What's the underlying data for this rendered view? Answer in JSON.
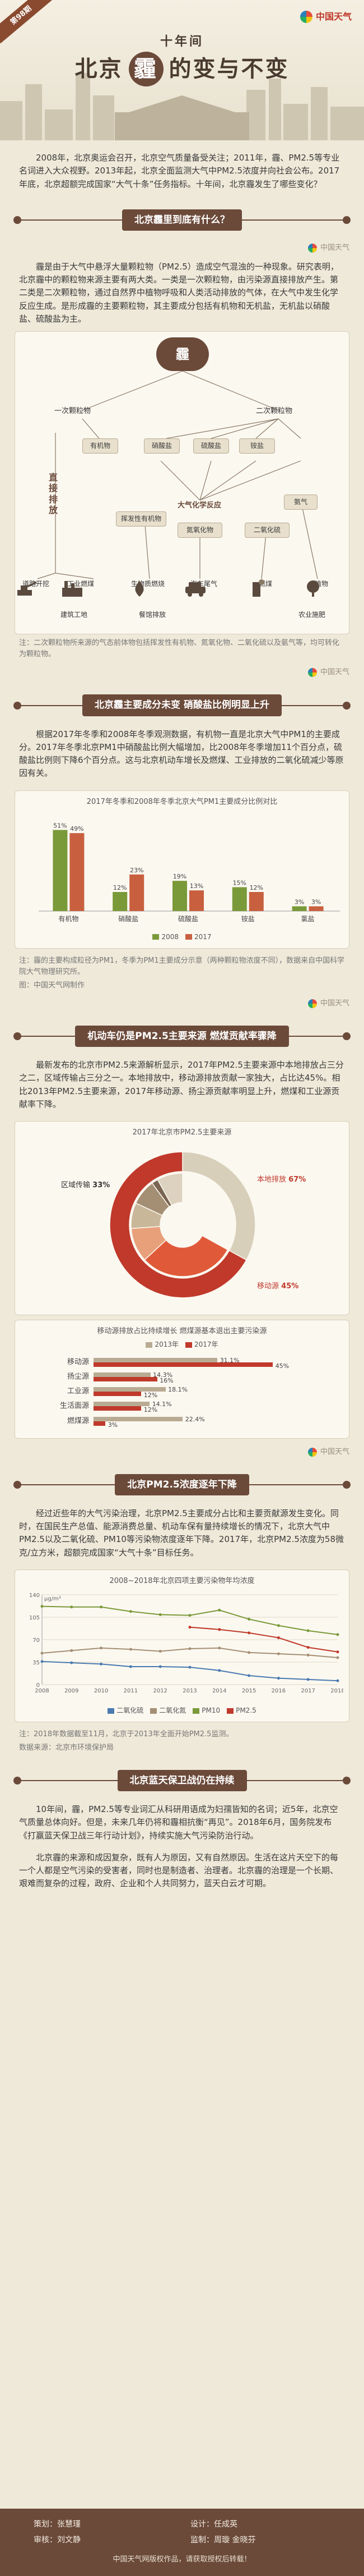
{
  "header": {
    "corner_tag": "第98期",
    "brand": "中国天气",
    "title_prefix": "十年间",
    "title_city": "北京",
    "title_haze": "霾",
    "title_suffix": "的变与不变"
  },
  "intro": "2008年，北京奥运会召开，北京空气质量备受关注；2011年，霾、PM2.5等专业名词进入大众视野。2013年起，北京全面监测大气中PM2.5浓度并向社会公布。2017年底，北京超额完成国家“大气十条”任务指标。十年间，北京霾发生了哪些变化？",
  "watermark": "中国天气",
  "section1": {
    "heading": "北京霾里到底有什么？",
    "text": "霾是由于大气中悬浮大量颗粒物（PM2.5）造成空气混浊的一种现象。研究表明，北京霾中的颗粒物来源主要有两大类。一类是一次颗粒物，由污染源直接排放产生。第二类是二次颗粒物，通过自然界中植物呼吸和人类活动排放的气体，在大气中发生化学反应生成。是形成霾的主要颗粒物，其主要成分包括有机物和无机盐，无机盐以硝酸盐、硫酸盐为主。",
    "core": "霾",
    "primary_label": "一次颗粒物",
    "secondary_label": "二次颗粒物",
    "direct_emission": "直接排放",
    "chem_label": "大气化学反应",
    "components": [
      "有机物",
      "硝酸盐",
      "硫酸盐",
      "铵盐",
      "挥发性有机物",
      "氮氧化物",
      "二氧化硫",
      "氨气"
    ],
    "sources": [
      "道路开挖",
      "工业燃煤",
      "生物质燃烧",
      "汽车尾气",
      "燃煤",
      "建筑工地",
      "餐馆排放",
      "植物",
      "农业施肥"
    ],
    "note": "注：二次颗粒物所来源的气态前体物包括挥发性有机物、氮氧化物、二氧化硫以及氨气等，均可转化为颗粒物。"
  },
  "section2": {
    "heading": "北京霾主要成分未变 硝酸盐比例明显上升",
    "text": "根据2017年冬季和2008年冬季观测数据，有机物一直是北京大气中PM1的主要成分。2017年冬季北京PM1中硝酸盐比例大幅增加，比2008年冬季增加11个百分点，硫酸盐比例则下降6个百分点。这与北京机动车增长及燃煤、工业排放的二氧化硫减少等原因有关。",
    "note": "注：霾的主要构成粒径为PM1，冬季为PM1主要成分示意（两种颗粒物浓度不同），数据来自中国科学院大气物理研究所。",
    "source": "图：中国天气网制作",
    "chart_data": {
      "type": "bar",
      "title": "2017年冬季和2008年冬季北京大气PM1主要成分比例对比",
      "categories": [
        "有机物",
        "硝酸盐",
        "硫酸盐",
        "铵盐",
        "氯盐"
      ],
      "series": [
        {
          "name": "2008",
          "values": [
            51,
            12,
            19,
            15,
            3
          ]
        },
        {
          "name": "2017",
          "values": [
            49,
            23,
            13,
            12,
            3
          ]
        }
      ],
      "colors": {
        "2008": "#7a9a3a",
        "2017": "#c8603f"
      },
      "value_labels": {
        "2008": [
          "51%",
          "12%",
          "19%",
          "15%",
          "3%"
        ],
        "2017": [
          "49%",
          "23%",
          "13%",
          "12%",
          "3%"
        ]
      },
      "ylim": [
        0,
        60
      ]
    }
  },
  "section3": {
    "heading": "机动车仍是PM2.5主要来源 燃煤贡献率骤降",
    "text": "最新发布的北京市PM2.5来源解析显示，2017年PM2.5主要来源中本地排放占三分之二，区域传输占三分之一。本地排放中，移动源排放贡献一家独大，占比达45%。相比2013年PM2.5主要来源，2017年移动源、扬尘源贡献率明显上升，燃煤和工业源贡献率下降。",
    "pie_title": "2017年北京市PM2.5主要来源",
    "pie_data": {
      "type": "pie",
      "outer": [
        {
          "label": "区域传输",
          "value": 33
        },
        {
          "label": "本地排放",
          "value": 67
        }
      ],
      "inner": [
        {
          "label": "移动源",
          "value": 45
        },
        {
          "label": "扬尘源",
          "value": 16
        },
        {
          "label": "工业源",
          "value": 12
        },
        {
          "label": "生活面源",
          "value": 12
        },
        {
          "label": "燃煤源",
          "value": 3
        },
        {
          "label": "其他",
          "value": 12
        }
      ],
      "colors": {
        "outer": [
          "#d8cfba",
          "#c0392b"
        ],
        "inner": [
          "#e05a3a",
          "#e8a07a",
          "#c9b79a",
          "#a58f74",
          "#7a6552",
          "#dcd2bf"
        ]
      }
    },
    "pie_labels": {
      "regional": "区域传输",
      "regional_pct": "33%",
      "local": "本地排放",
      "local_pct": "67%",
      "mobile": "移动源",
      "mobile_pct": "45%"
    },
    "hbar_title": "移动源排放占比持续增长 燃煤源基本退出主要污染源",
    "hbar_legend": [
      "2013年",
      "2017年"
    ],
    "hbar_data": {
      "type": "bar",
      "categories": [
        "移动源",
        "扬尘源",
        "工业源",
        "生活面源",
        "燃煤源"
      ],
      "series": [
        {
          "name": "2013年",
          "values": [
            31.1,
            14.3,
            18.1,
            14.1,
            22.4
          ]
        },
        {
          "name": "2017年",
          "values": [
            45,
            16,
            12,
            12,
            3
          ]
        }
      ],
      "value_labels": {
        "2013年": [
          "31.1%",
          "14.3%",
          "18.1%",
          "14.1%",
          "22.4%"
        ],
        "2017年": [
          "45%",
          "16%",
          "12%",
          "12%",
          "3%"
        ]
      },
      "colors": {
        "2013年": "#b9ab93",
        "2017年": "#c0392b"
      },
      "xlim": [
        0,
        50
      ]
    }
  },
  "section4": {
    "heading": "北京PM2.5浓度逐年下降",
    "text": "经过近些年的大气污染治理，北京PM2.5主要成分占比和主要贡献源发生变化。同时，在国民生产总值、能源消费总量、机动车保有量持续增长的情况下，北京大气中PM2.5以及二氧化硫、PM10等污染物浓度逐年下降。2017年，北京PM2.5浓度为58微克/立方米，超额完成国家“大气十条”目标任务。",
    "chart_title": "2008~2018年北京四项主要污染物年均浓度",
    "chart_data": {
      "type": "line",
      "x": [
        "2008",
        "2009",
        "2010",
        "2011",
        "2012",
        "2013",
        "2014",
        "2015",
        "2016",
        "2017",
        "2018"
      ],
      "series": [
        {
          "name": "二氧化硫",
          "values": [
            36,
            34,
            32,
            28,
            28,
            27,
            22,
            14,
            10,
            8,
            6
          ]
        },
        {
          "name": "二氧化氮",
          "values": [
            49,
            53,
            57,
            55,
            52,
            56,
            57,
            50,
            48,
            46,
            42
          ]
        },
        {
          "name": "PM10",
          "values": [
            122,
            121,
            121,
            114,
            109,
            108,
            116,
            102,
            92,
            84,
            78
          ]
        },
        {
          "name": "PM2.5",
          "values": [
            null,
            null,
            null,
            null,
            null,
            89.5,
            85.9,
            80.6,
            73,
            58,
            51
          ]
        }
      ],
      "colors": {
        "二氧化硫": "#4a7ab0",
        "二氧化氮": "#a58f74",
        "PM10": "#7a9a3a",
        "PM2.5": "#c0392b"
      },
      "ylabel": "μg/m³",
      "ylim": [
        0,
        140
      ]
    },
    "note": "注：2018年数据截至11月，北京于2013年全面开始PM2.5监测。",
    "source": "数据来源：北京市环境保护局"
  },
  "section5": {
    "heading": "北京蓝天保卫战仍在持续",
    "text1": "10年间，霾，PM2.5等专业词汇从科研用语成为妇孺皆知的名词；近5年，北京空气质量总体向好。但是，未来几年仍将和霾相抗衡“再见”。2018年6月，国务院发布《打赢蓝天保卫战三年行动计划》，持续实施大气污染防治行动。",
    "text2": "北京霾的来源和成因复杂，既有人为原因，又有自然原因。生活在这片天空下的每一个人都是空气污染的受害者，同时也是制造者、治理者。北京霾的治理是一个长期、艰难而复杂的过程，政府、企业和个人共同努力，蓝天白云才可期。"
  },
  "footer": {
    "credits": [
      {
        "role": "策划",
        "name": "张慧瑾"
      },
      {
        "role": "设计",
        "name": "任成英"
      },
      {
        "role": "审核",
        "name": "刘文静"
      },
      {
        "role": "监制",
        "name": "周璇 金晓芬"
      }
    ],
    "note": "中国天气网版权作品，请获取授权后转载！"
  }
}
